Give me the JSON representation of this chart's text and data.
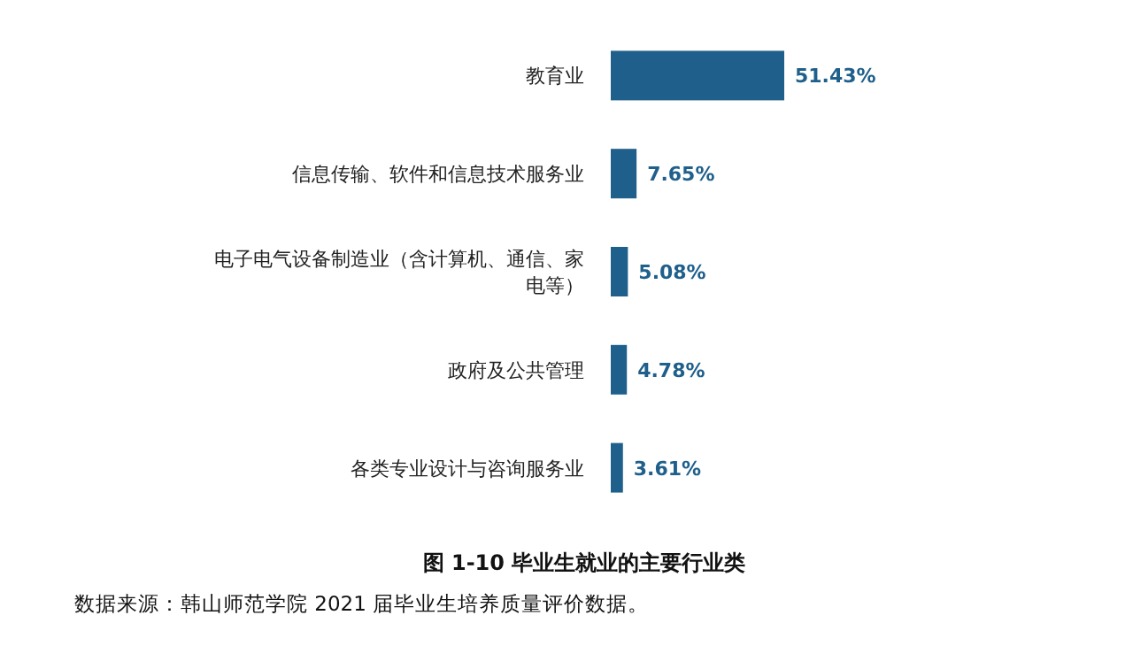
{
  "chart_data": {
    "type": "bar",
    "orientation": "horizontal",
    "title": "图 1-10    毕业生就业的主要行业类",
    "categories": [
      "教育业",
      "信息传输、软件和信息技术服务业",
      "电子电气设备制造业（含计算机、通信、家电等）",
      "政府及公共管理",
      "各类专业设计与咨询服务业"
    ],
    "values": [
      51.43,
      7.65,
      5.08,
      4.78,
      3.61
    ],
    "value_labels": [
      "51.43%",
      "7.65%",
      "5.08%",
      "4.78%",
      "3.61%"
    ],
    "color": "#1f5f8b",
    "tick_labels": "y",
    "annotations": [
      "数据来源：韩山师范学院 2021 届毕业生培养质量评价数据。"
    ]
  }
}
